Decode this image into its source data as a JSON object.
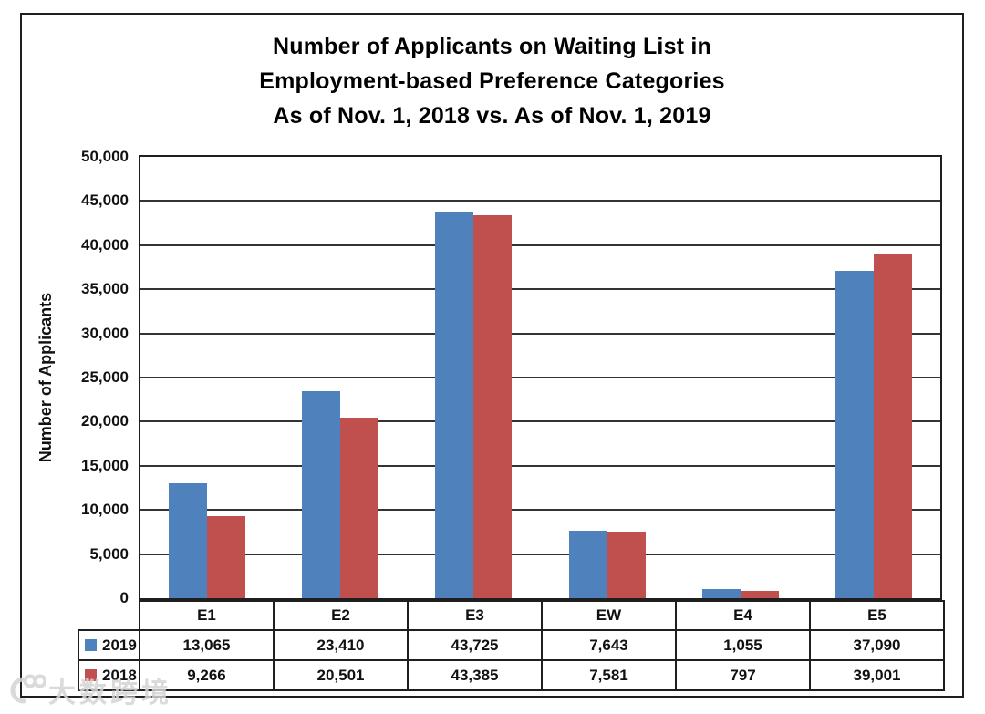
{
  "chart": {
    "title_lines": [
      "Number of Applicants on Waiting List in",
      "Employment-based Preference Categories",
      "As of Nov. 1, 2018 vs. As of Nov. 1, 2019"
    ],
    "y_axis_label": "Number of Applicants"
  },
  "chart_data": {
    "type": "bar",
    "title": "Number of Applicants on Waiting List in Employment-based Preference Categories As of Nov. 1, 2018 vs. As of Nov. 1, 2019",
    "xlabel": "",
    "ylabel": "Number of Applicants",
    "ylim": [
      0,
      50000
    ],
    "grid": true,
    "legend_position": "table-left",
    "categories": [
      "E1",
      "E2",
      "E3",
      "EW",
      "E4",
      "E5"
    ],
    "series": [
      {
        "name": "2019",
        "color": "#4F81BD",
        "values": [
          13065,
          23410,
          43725,
          7643,
          1055,
          37090
        ],
        "labels": [
          "13,065",
          "23,410",
          "43,725",
          "7,643",
          "1,055",
          "37,090"
        ]
      },
      {
        "name": "2018",
        "color": "#C0504D",
        "values": [
          9266,
          20501,
          43385,
          7581,
          797,
          39001
        ],
        "labels": [
          "9,266",
          "20,501",
          "43,385",
          "7,581",
          "797",
          "39,001"
        ]
      }
    ],
    "y_ticks": [
      {
        "value": 0,
        "label": "0"
      },
      {
        "value": 5000,
        "label": "5,000"
      },
      {
        "value": 10000,
        "label": "10,000"
      },
      {
        "value": 15000,
        "label": "15,000"
      },
      {
        "value": 20000,
        "label": "20,000"
      },
      {
        "value": 25000,
        "label": "25,000"
      },
      {
        "value": 30000,
        "label": "30,000"
      },
      {
        "value": 35000,
        "label": "35,000"
      },
      {
        "value": 40000,
        "label": "40,000"
      },
      {
        "value": 45000,
        "label": "45,000"
      },
      {
        "value": 50000,
        "label": "50,000"
      }
    ]
  },
  "watermark": {
    "text": "大数跨境"
  }
}
